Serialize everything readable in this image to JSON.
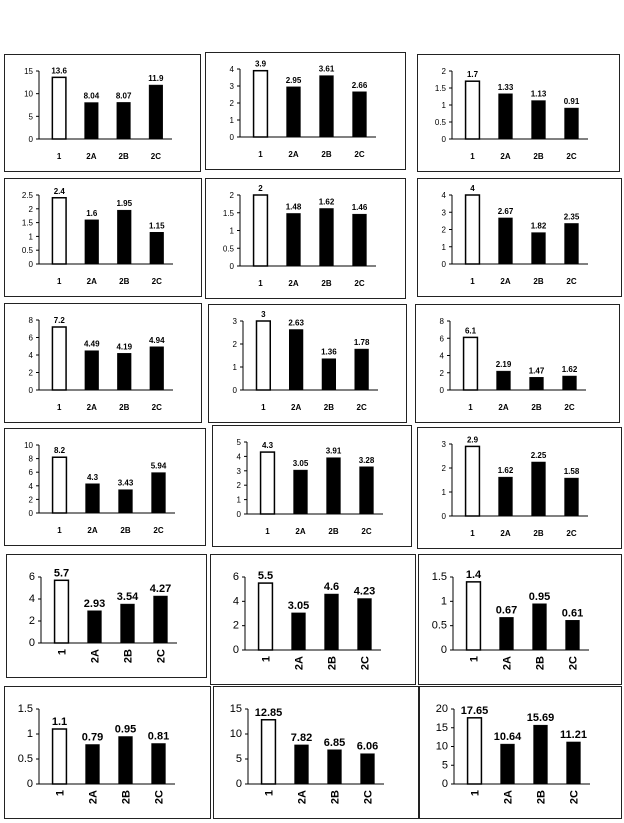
{
  "chart_data": [
    {
      "type": "bar",
      "categories": [
        "1",
        "2A",
        "2B",
        "2C"
      ],
      "values": [
        13.6,
        8.04,
        8.07,
        11.9
      ],
      "ylim": [
        0,
        15
      ],
      "yticks": [
        "0",
        "5",
        "10",
        "15"
      ],
      "labels": [
        "13.6",
        "8.04",
        "8.07",
        "11.9"
      ]
    },
    {
      "type": "bar",
      "categories": [
        "1",
        "2A",
        "2B",
        "2C"
      ],
      "values": [
        3.9,
        2.95,
        3.61,
        2.66
      ],
      "ylim": [
        0,
        4
      ],
      "yticks": [
        "0",
        "1",
        "2",
        "3",
        "4"
      ],
      "labels": [
        "3.9",
        "2.95",
        "3.61",
        "2.66"
      ]
    },
    {
      "type": "bar",
      "categories": [
        "1",
        "2A",
        "2B",
        "2C"
      ],
      "values": [
        1.7,
        1.33,
        1.13,
        0.91
      ],
      "ylim": [
        0,
        2
      ],
      "yticks": [
        "0",
        "0.5",
        "1",
        "1.5",
        "2"
      ],
      "labels": [
        "1.7",
        "1.33",
        "1.13",
        "0.91"
      ]
    },
    {
      "type": "bar",
      "categories": [
        "1",
        "2A",
        "2B",
        "2C"
      ],
      "values": [
        2.4,
        1.6,
        1.95,
        1.15
      ],
      "ylim": [
        0,
        2.5
      ],
      "yticks": [
        "0",
        "0.5",
        "1",
        "1.5",
        "2",
        "2.5"
      ],
      "labels": [
        "2.4",
        "1.6",
        "1.95",
        "1.15"
      ]
    },
    {
      "type": "bar",
      "categories": [
        "1",
        "2A",
        "2B",
        "2C"
      ],
      "values": [
        2,
        1.48,
        1.62,
        1.46
      ],
      "ylim": [
        0,
        2
      ],
      "yticks": [
        "0",
        "0.5",
        "1",
        "1.5",
        "2"
      ],
      "labels": [
        "2",
        "1.48",
        "1.62",
        "1.46"
      ]
    },
    {
      "type": "bar",
      "categories": [
        "1",
        "2A",
        "2B",
        "2C"
      ],
      "values": [
        4,
        2.67,
        1.82,
        2.35
      ],
      "ylim": [
        0,
        4
      ],
      "yticks": [
        "0",
        "1",
        "2",
        "3",
        "4"
      ],
      "labels": [
        "4",
        "2.67",
        "1.82",
        "2.35"
      ]
    },
    {
      "type": "bar",
      "categories": [
        "1",
        "2A",
        "2B",
        "2C"
      ],
      "values": [
        7.2,
        4.49,
        4.19,
        4.94
      ],
      "ylim": [
        0,
        8
      ],
      "yticks": [
        "0",
        "2",
        "4",
        "6",
        "8"
      ],
      "labels": [
        "7.2",
        "4.49",
        "4.19",
        "4.94"
      ]
    },
    {
      "type": "bar",
      "categories": [
        "1",
        "2A",
        "2B",
        "2C"
      ],
      "values": [
        3,
        2.63,
        1.36,
        1.78
      ],
      "ylim": [
        0,
        3
      ],
      "yticks": [
        "0",
        "1",
        "2",
        "3"
      ],
      "labels": [
        "3",
        "2.63",
        "1.36",
        "1.78"
      ]
    },
    {
      "type": "bar",
      "categories": [
        "1",
        "2A",
        "2B",
        "2C"
      ],
      "values": [
        6.1,
        2.19,
        1.47,
        1.62
      ],
      "ylim": [
        0,
        8
      ],
      "yticks": [
        "0",
        "2",
        "4",
        "6",
        "8"
      ],
      "labels": [
        "6.1",
        "2.19",
        "1.47",
        "1.62"
      ]
    },
    {
      "type": "bar",
      "categories": [
        "1",
        "2A",
        "2B",
        "2C"
      ],
      "values": [
        8.2,
        4.3,
        3.43,
        5.94
      ],
      "ylim": [
        0,
        10
      ],
      "yticks": [
        "0",
        "2",
        "4",
        "6",
        "8",
        "10"
      ],
      "labels": [
        "8.2",
        "4.3",
        "3.43",
        "5.94"
      ]
    },
    {
      "type": "bar",
      "categories": [
        "1",
        "2A",
        "2B",
        "2C"
      ],
      "values": [
        4.3,
        3.05,
        3.91,
        3.28
      ],
      "ylim": [
        0,
        5
      ],
      "yticks": [
        "0",
        "1",
        "2",
        "3",
        "4",
        "5"
      ],
      "labels": [
        "4.3",
        "3.05",
        "3.91",
        "3.28"
      ]
    },
    {
      "type": "bar",
      "categories": [
        "1",
        "2A",
        "2B",
        "2C"
      ],
      "values": [
        2.9,
        1.62,
        2.25,
        1.58
      ],
      "ylim": [
        0,
        3
      ],
      "yticks": [
        "0",
        "1",
        "2",
        "3"
      ],
      "labels": [
        "2.9",
        "1.62",
        "2.25",
        "1.58"
      ]
    },
    {
      "type": "bar",
      "categories": [
        "1",
        "2A",
        "2B",
        "2C"
      ],
      "values": [
        5.7,
        2.93,
        3.54,
        4.27
      ],
      "ylim": [
        0,
        6
      ],
      "yticks": [
        "0",
        "2",
        "4",
        "6"
      ],
      "labels": [
        "5.7",
        "2.93",
        "3.54",
        "4.27"
      ],
      "rotated": true
    },
    {
      "type": "bar",
      "categories": [
        "1",
        "2A",
        "2B",
        "2C"
      ],
      "values": [
        5.5,
        3.05,
        4.6,
        4.23
      ],
      "ylim": [
        0,
        6
      ],
      "yticks": [
        "0",
        "2",
        "4",
        "6"
      ],
      "labels": [
        "5.5",
        "3.05",
        "4.6",
        "4.23"
      ],
      "rotated": true
    },
    {
      "type": "bar",
      "categories": [
        "1",
        "2A",
        "2B",
        "2C"
      ],
      "values": [
        1.4,
        0.67,
        0.95,
        0.61
      ],
      "ylim": [
        0,
        1.5
      ],
      "yticks": [
        "0",
        "0.5",
        "1",
        "1.5"
      ],
      "labels": [
        "1.4",
        "0.67",
        "0.95",
        "0.61"
      ],
      "rotated": true
    },
    {
      "type": "bar",
      "categories": [
        "1",
        "2A",
        "2B",
        "2C"
      ],
      "values": [
        1.1,
        0.79,
        0.95,
        0.81
      ],
      "ylim": [
        0,
        1.5
      ],
      "yticks": [
        "0",
        "0.5",
        "1",
        "1.5"
      ],
      "labels": [
        "1.1",
        "0.79",
        "0.95",
        "0.81"
      ],
      "rotated": true
    },
    {
      "type": "bar",
      "categories": [
        "1",
        "2A",
        "2B",
        "2C"
      ],
      "values": [
        12.85,
        7.82,
        6.85,
        6.06
      ],
      "ylim": [
        0,
        15
      ],
      "yticks": [
        "0",
        "5",
        "10",
        "15"
      ],
      "labels": [
        "12.85",
        "7.82",
        "6.85",
        "6.06"
      ],
      "rotated": true
    },
    {
      "type": "bar",
      "categories": [
        "1",
        "2A",
        "2B",
        "2C"
      ],
      "values": [
        17.65,
        10.64,
        15.69,
        11.21
      ],
      "ylim": [
        0,
        20
      ],
      "yticks": [
        "0",
        "5",
        "10",
        "15",
        "20"
      ],
      "labels": [
        "17.65",
        "10.64",
        "15.69",
        "11.21"
      ],
      "rotated": true
    }
  ],
  "colors": {
    "first_bar_fill": "#ffffff",
    "other_bar_fill": "#000000",
    "first_category_color": "#cc0000",
    "axis": "#000000"
  }
}
